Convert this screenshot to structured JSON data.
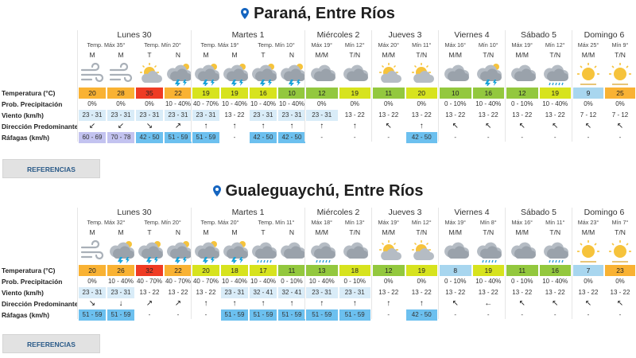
{
  "labels": {
    "temperature": "Temperatura (°C)",
    "precip": "Prob. Precipitación",
    "wind": "Viento (km/h)",
    "direction": "Dirección Predominante",
    "gusts": "Ráfagas (km/h)"
  },
  "button_label": "REFERENCIAS",
  "colors": {
    "pin": "#1565c0",
    "button_text": "#2a5a88",
    "temp_orange": "#f9b233",
    "temp_red": "#ef3b24",
    "temp_yellowgreen": "#d7e31e",
    "temp_green": "#93c83e",
    "temp_lightgreen": "#bfe039",
    "temp_lightblue": "#a8d6ef",
    "wind_bg": "#d9ecf8",
    "gust_blue": "#6cc0ef",
    "gust_lavender": "#c3c3f0"
  },
  "cities": [
    {
      "title": "Paraná, Entre Ríos",
      "days": [
        {
          "name": "Lunes 30",
          "subs": [
            "Temp. Máx 35°",
            "Temp. Mín 20°"
          ],
          "cols": [
            {
              "p": "M",
              "icon": "wind-icon",
              "t": "20",
              "tc": "temp_orange",
              "pr": "0%",
              "w": "23 - 31",
              "wb": true,
              "d": "↙",
              "g": "60 - 69",
              "gc": "gust_lavender"
            },
            {
              "p": "M",
              "icon": "wind-icon",
              "t": "28",
              "tc": "temp_orange",
              "pr": "0%",
              "w": "23 - 31",
              "wb": true,
              "d": "↙",
              "g": "70 - 78",
              "gc": "gust_lavender"
            },
            {
              "p": "T",
              "icon": "partly-cloudy-icon",
              "t": "35",
              "tc": "temp_red",
              "pr": "0%",
              "w": "23 - 31",
              "wb": true,
              "d": "↘",
              "g": "42 - 50",
              "gc": "gust_blue"
            },
            {
              "p": "N",
              "icon": "storm-icon",
              "t": "22",
              "tc": "temp_orange",
              "pr": "10 - 40%",
              "w": "23 - 31",
              "wb": true,
              "d": "↗",
              "g": "51 - 59",
              "gc": "gust_blue"
            }
          ]
        },
        {
          "name": "Martes 1",
          "subs": [
            "Temp. Máx 19°",
            "Temp. Mín 10°"
          ],
          "cols": [
            {
              "p": "M",
              "icon": "storm-icon",
              "t": "19",
              "tc": "temp_yellowgreen",
              "pr": "40 - 70%",
              "w": "23 - 31",
              "wb": true,
              "d": "↑",
              "g": "51 - 59",
              "gc": "gust_blue"
            },
            {
              "p": "M",
              "icon": "storm-icon",
              "t": "19",
              "tc": "temp_yellowgreen",
              "pr": "10 - 40%",
              "w": "13 - 22",
              "wb": false,
              "d": "↑",
              "g": "-",
              "gc": ""
            },
            {
              "p": "T",
              "icon": "storm-icon",
              "t": "16",
              "tc": "temp_yellowgreen",
              "pr": "10 - 40%",
              "w": "23 - 31",
              "wb": true,
              "d": "↑",
              "g": "42 - 50",
              "gc": "gust_blue"
            },
            {
              "p": "N",
              "icon": "storm-icon",
              "t": "10",
              "tc": "temp_green",
              "pr": "10 - 40%",
              "w": "23 - 31",
              "wb": true,
              "d": "↑",
              "g": "42 - 50",
              "gc": "gust_blue"
            }
          ]
        },
        {
          "name": "Miércoles 2",
          "subs": [
            "Máx 19°",
            "Mín 12°"
          ],
          "subp": [
            "M/M",
            "T/N"
          ],
          "cols": [
            {
              "p": "M/M",
              "icon": "cloudy-icon",
              "t": "12",
              "tc": "temp_green",
              "pr": "0%",
              "w": "23 - 31",
              "wb": true,
              "d": "↑",
              "g": "-",
              "gc": ""
            },
            {
              "p": "T/N",
              "icon": "cloudy-icon",
              "t": "19",
              "tc": "temp_yellowgreen",
              "pr": "0%",
              "w": "13 - 22",
              "wb": false,
              "d": "↑",
              "g": "-",
              "gc": ""
            }
          ]
        },
        {
          "name": "Jueves 3",
          "subs": [
            "Máx 20°",
            "Mín 11°"
          ],
          "subp": [
            "M/M",
            "T/N"
          ],
          "cols": [
            {
              "p": "M/M",
              "icon": "partly-cloudy-icon",
              "t": "11",
              "tc": "temp_green",
              "pr": "0%",
              "w": "13 - 22",
              "wb": false,
              "d": "↖",
              "g": "-",
              "gc": ""
            },
            {
              "p": "T/N",
              "icon": "partly-cloudy-icon",
              "t": "20",
              "tc": "temp_yellowgreen",
              "pr": "0%",
              "w": "13 - 22",
              "wb": false,
              "d": "↑",
              "g": "42 - 50",
              "gc": "gust_blue"
            }
          ]
        },
        {
          "name": "Viernes 4",
          "subs": [
            "Máx 16°",
            "Mín 10°"
          ],
          "subp": [
            "M/M",
            "T/N"
          ],
          "cols": [
            {
              "p": "M/M",
              "icon": "cloudy-icon",
              "t": "10",
              "tc": "temp_green",
              "pr": "0 - 10%",
              "w": "13 - 22",
              "wb": false,
              "d": "↖",
              "g": "-",
              "gc": ""
            },
            {
              "p": "T/N",
              "icon": "storm-icon",
              "t": "16",
              "tc": "temp_green",
              "pr": "10 - 40%",
              "w": "13 - 22",
              "wb": false,
              "d": "↖",
              "g": "-",
              "gc": ""
            }
          ]
        },
        {
          "name": "Sábado 5",
          "subs": [
            "Máx 19°",
            "Mín 12°"
          ],
          "subp": [
            "M/M",
            "T/N"
          ],
          "cols": [
            {
              "p": "M/M",
              "icon": "cloudy-icon",
              "t": "12",
              "tc": "temp_green",
              "pr": "0 - 10%",
              "w": "13 - 22",
              "wb": false,
              "d": "↖",
              "g": "-",
              "gc": ""
            },
            {
              "p": "T/N",
              "icon": "rain-icon",
              "t": "19",
              "tc": "temp_yellowgreen",
              "pr": "10 - 40%",
              "w": "13 - 22",
              "wb": false,
              "d": "↖",
              "g": "-",
              "gc": ""
            }
          ]
        },
        {
          "name": "Domingo 6",
          "subs": [
            "Máx 25°",
            "Mín 9°"
          ],
          "subp": [
            "M/M",
            "T/N"
          ],
          "cols": [
            {
              "p": "M/M",
              "icon": "sun-icon",
              "t": "9",
              "tc": "temp_lightblue",
              "pr": "0%",
              "w": "7 - 12",
              "wb": false,
              "d": "↖",
              "g": "-",
              "gc": ""
            },
            {
              "p": "T/N",
              "icon": "sun-icon",
              "t": "25",
              "tc": "temp_orange",
              "pr": "0%",
              "w": "7 - 12",
              "wb": false,
              "d": "↖",
              "g": "-",
              "gc": ""
            }
          ]
        }
      ]
    },
    {
      "title": "Gualeguaychú, Entre Ríos",
      "days": [
        {
          "name": "Lunes 30",
          "subs": [
            "Temp. Máx 32°",
            "Temp. Mín 20°"
          ],
          "cols": [
            {
              "p": "M",
              "icon": "wind-icon",
              "t": "20",
              "tc": "temp_orange",
              "pr": "0%",
              "w": "23 - 31",
              "wb": true,
              "d": "↘",
              "g": "51 - 59",
              "gc": "gust_blue"
            },
            {
              "p": "M",
              "icon": "storm-icon",
              "t": "26",
              "tc": "temp_orange",
              "pr": "10 - 40%",
              "w": "23 - 31",
              "wb": true,
              "d": "↓",
              "g": "51 - 59",
              "gc": "gust_blue"
            },
            {
              "p": "T",
              "icon": "storm-icon",
              "t": "32",
              "tc": "temp_red",
              "pr": "40 - 70%",
              "w": "13 - 22",
              "wb": false,
              "d": "↗",
              "g": "-",
              "gc": ""
            },
            {
              "p": "N",
              "icon": "storm-icon",
              "t": "22",
              "tc": "temp_orange",
              "pr": "40 - 70%",
              "w": "13 - 22",
              "wb": false,
              "d": "↗",
              "g": "-",
              "gc": ""
            }
          ]
        },
        {
          "name": "Martes 1",
          "subs": [
            "Temp. Máx 20°",
            "Temp. Mín 11°"
          ],
          "cols": [
            {
              "p": "M",
              "icon": "storm-icon",
              "t": "20",
              "tc": "temp_yellowgreen",
              "pr": "40 - 70%",
              "w": "13 - 22",
              "wb": false,
              "d": "↑",
              "g": "-",
              "gc": ""
            },
            {
              "p": "M",
              "icon": "storm-icon",
              "t": "18",
              "tc": "temp_yellowgreen",
              "pr": "10 - 40%",
              "w": "23 - 31",
              "wb": true,
              "d": "↑",
              "g": "51 - 59",
              "gc": "gust_blue"
            },
            {
              "p": "T",
              "icon": "rain-icon",
              "t": "17",
              "tc": "temp_yellowgreen",
              "pr": "10 - 40%",
              "w": "32 - 41",
              "wb": true,
              "d": "↑",
              "g": "51 - 59",
              "gc": "gust_blue"
            },
            {
              "p": "N",
              "icon": "cloudy-icon",
              "t": "11",
              "tc": "temp_green",
              "pr": "0 - 10%",
              "w": "32 - 41",
              "wb": true,
              "d": "↑",
              "g": "51 - 59",
              "gc": "gust_blue"
            }
          ]
        },
        {
          "name": "Miércoles 2",
          "subs": [
            "Máx 18°",
            "Mín 13°"
          ],
          "subp": [
            "M/M",
            "T/N"
          ],
          "cols": [
            {
              "p": "M/M",
              "icon": "rain-icon",
              "t": "13",
              "tc": "temp_green",
              "pr": "10 - 40%",
              "w": "23 - 31",
              "wb": true,
              "d": "↑",
              "g": "51 - 59",
              "gc": "gust_blue"
            },
            {
              "p": "T/N",
              "icon": "cloudy-icon",
              "t": "18",
              "tc": "temp_yellowgreen",
              "pr": "0 - 10%",
              "w": "23 - 31",
              "wb": true,
              "d": "↑",
              "g": "51 - 59",
              "gc": "gust_blue"
            }
          ]
        },
        {
          "name": "Jueves 3",
          "subs": [
            "Máx 19°",
            "Mín 12°"
          ],
          "subp": [
            "M/M",
            "T/N"
          ],
          "cols": [
            {
              "p": "M/M",
              "icon": "partly-cloudy-icon",
              "t": "12",
              "tc": "temp_green",
              "pr": "0%",
              "w": "13 - 22",
              "wb": false,
              "d": "↑",
              "g": "-",
              "gc": ""
            },
            {
              "p": "T/N",
              "icon": "partly-cloudy-icon",
              "t": "19",
              "tc": "temp_yellowgreen",
              "pr": "0%",
              "w": "13 - 22",
              "wb": false,
              "d": "↑",
              "g": "42 - 50",
              "gc": "gust_blue"
            }
          ]
        },
        {
          "name": "Viernes 4",
          "subs": [
            "Máx 19°",
            "Mín 8°"
          ],
          "subp": [
            "M/M",
            "T/N"
          ],
          "cols": [
            {
              "p": "M/M",
              "icon": "cloudy-icon",
              "t": "8",
              "tc": "temp_lightblue",
              "pr": "0 - 10%",
              "w": "13 - 22",
              "wb": false,
              "d": "↖",
              "g": "-",
              "gc": ""
            },
            {
              "p": "T/N",
              "icon": "rain-icon",
              "t": "19",
              "tc": "temp_yellowgreen",
              "pr": "10 - 40%",
              "w": "13 - 22",
              "wb": false,
              "d": "←",
              "g": "-",
              "gc": ""
            }
          ]
        },
        {
          "name": "Sábado 5",
          "subs": [
            "Máx 16°",
            "Mín 11°"
          ],
          "subp": [
            "M/M",
            "T/N"
          ],
          "cols": [
            {
              "p": "M/M",
              "icon": "cloudy-icon",
              "t": "11",
              "tc": "temp_green",
              "pr": "0 - 10%",
              "w": "13 - 22",
              "wb": false,
              "d": "↖",
              "g": "-",
              "gc": ""
            },
            {
              "p": "T/N",
              "icon": "rain-icon",
              "t": "16",
              "tc": "temp_green",
              "pr": "10 - 40%",
              "w": "13 - 22",
              "wb": false,
              "d": "↖",
              "g": "-",
              "gc": ""
            }
          ]
        },
        {
          "name": "Domingo 6",
          "subs": [
            "Máx 23°",
            "Mín 7°"
          ],
          "subp": [
            "M/M",
            "T/N"
          ],
          "cols": [
            {
              "p": "M/M",
              "icon": "sun-icon",
              "t": "7",
              "tc": "temp_lightblue",
              "pr": "0%",
              "w": "13 - 22",
              "wb": false,
              "d": "↖",
              "g": "-",
              "gc": ""
            },
            {
              "p": "T/N",
              "icon": "sun-icon",
              "t": "23",
              "tc": "temp_orange",
              "pr": "0%",
              "w": "13 - 22",
              "wb": false,
              "d": "↖",
              "g": "-",
              "gc": ""
            }
          ]
        }
      ]
    }
  ]
}
